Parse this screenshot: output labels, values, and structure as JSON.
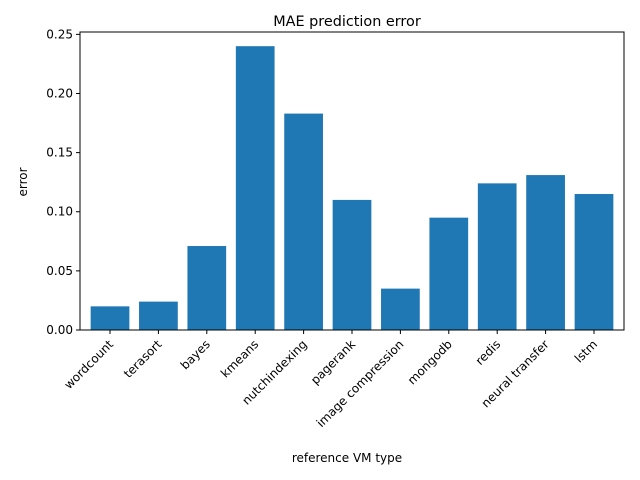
{
  "chart_data": {
    "type": "bar",
    "title": "MAE prediction error",
    "xlabel": "reference VM type",
    "ylabel": "error",
    "categories": [
      "wordcount",
      "terasort",
      "bayes",
      "kmeans",
      "nutchindexing",
      "pagerank",
      "image compression",
      "mongodb",
      "redis",
      "neural transfer",
      "lstm"
    ],
    "values": [
      0.02,
      0.024,
      0.071,
      0.24,
      0.183,
      0.11,
      0.035,
      0.095,
      0.124,
      0.131,
      0.115
    ],
    "ylim": [
      0,
      0.252
    ],
    "yticks": [
      "0.00",
      "0.05",
      "0.10",
      "0.15",
      "0.20",
      "0.25"
    ],
    "ytick_values": [
      0,
      0.05,
      0.1,
      0.15,
      0.2,
      0.25
    ],
    "bar_color": "#1f77b4",
    "grid": false,
    "legend": "none"
  }
}
